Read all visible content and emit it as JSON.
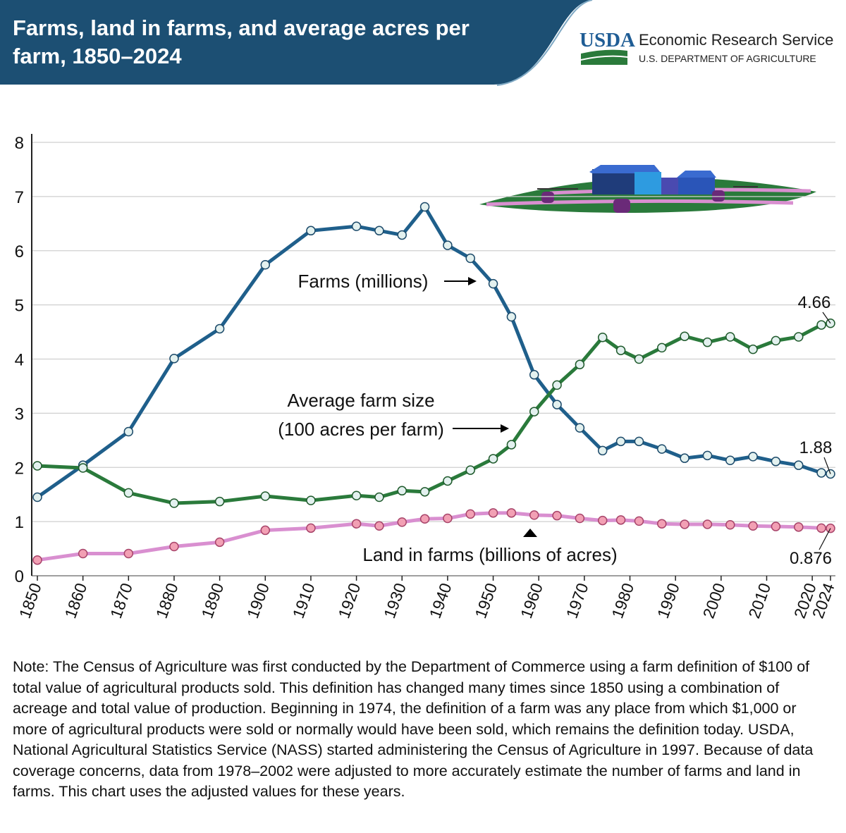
{
  "chart_data": {
    "type": "line",
    "title": "Farms, land in farms, and average acres per farm, 1850–2024",
    "x": [
      1850,
      1860,
      1870,
      1880,
      1890,
      1900,
      1910,
      1920,
      1925,
      1930,
      1935,
      1940,
      1945,
      1950,
      1954,
      1959,
      1964,
      1969,
      1974,
      1978,
      1982,
      1987,
      1992,
      1997,
      2002,
      2007,
      2012,
      2017,
      2022,
      2024
    ],
    "series": [
      {
        "name": "Farms (millions)",
        "color": "#1f5f8b",
        "values": [
          1.45,
          2.04,
          2.66,
          4.01,
          4.56,
          5.74,
          6.37,
          6.45,
          6.37,
          6.29,
          6.81,
          6.1,
          5.86,
          5.39,
          4.78,
          3.71,
          3.16,
          2.73,
          2.31,
          2.48,
          2.48,
          2.34,
          2.17,
          2.22,
          2.13,
          2.2,
          2.11,
          2.04,
          1.9,
          1.88
        ]
      },
      {
        "name": "Average farm size (100 acres per farm)",
        "color": "#2a7a3b",
        "values": [
          2.03,
          1.99,
          1.53,
          1.34,
          1.37,
          1.47,
          1.39,
          1.48,
          1.45,
          1.57,
          1.55,
          1.75,
          1.95,
          2.16,
          2.42,
          3.03,
          3.52,
          3.9,
          4.4,
          4.16,
          4.0,
          4.21,
          4.42,
          4.31,
          4.41,
          4.18,
          4.34,
          4.41,
          4.63,
          4.66
        ]
      },
      {
        "name": "Land in farms (billions of acres)",
        "color": "#d98fd0",
        "values": [
          0.29,
          0.41,
          0.41,
          0.54,
          0.62,
          0.84,
          0.88,
          0.96,
          0.92,
          0.99,
          1.05,
          1.06,
          1.14,
          1.16,
          1.16,
          1.12,
          1.11,
          1.06,
          1.02,
          1.03,
          1.01,
          0.96,
          0.95,
          0.95,
          0.94,
          0.92,
          0.91,
          0.9,
          0.88,
          0.876
        ]
      }
    ],
    "xlim": [
      1850,
      2024
    ],
    "xticks": [
      1850,
      1860,
      1870,
      1880,
      1890,
      1900,
      1910,
      1920,
      1930,
      1940,
      1950,
      1960,
      1970,
      1980,
      1990,
      2000,
      2010,
      2020,
      2024
    ],
    "ylim": [
      0,
      8
    ],
    "yticks": [
      0,
      1,
      2,
      3,
      4,
      5,
      6,
      7,
      8
    ],
    "grid": true
  },
  "logo": {
    "usda": "USDA",
    "agency": "Economic Research Service",
    "department": "U.S. DEPARTMENT OF AGRICULTURE"
  },
  "note": "Note: The Census of Agriculture was first conducted by the Department of Commerce using a farm definition of $100 of total value of agricultural products sold. This definition has changed many times since 1850 using a combination of acreage and total value of production. Beginning in 1974, the definition of a farm was any place from which $1,000 or more of agricultural products were sold or normally would have been sold, which remains the definition today. USDA, National Agricultural Statistics Service (NASS) started administering the Census of Agriculture in 1997. Because of data coverage concerns, data from 1978–2002 were adjusted to more accurately estimate the number of farms and land in farms. This chart uses the adjusted values for these years."
}
